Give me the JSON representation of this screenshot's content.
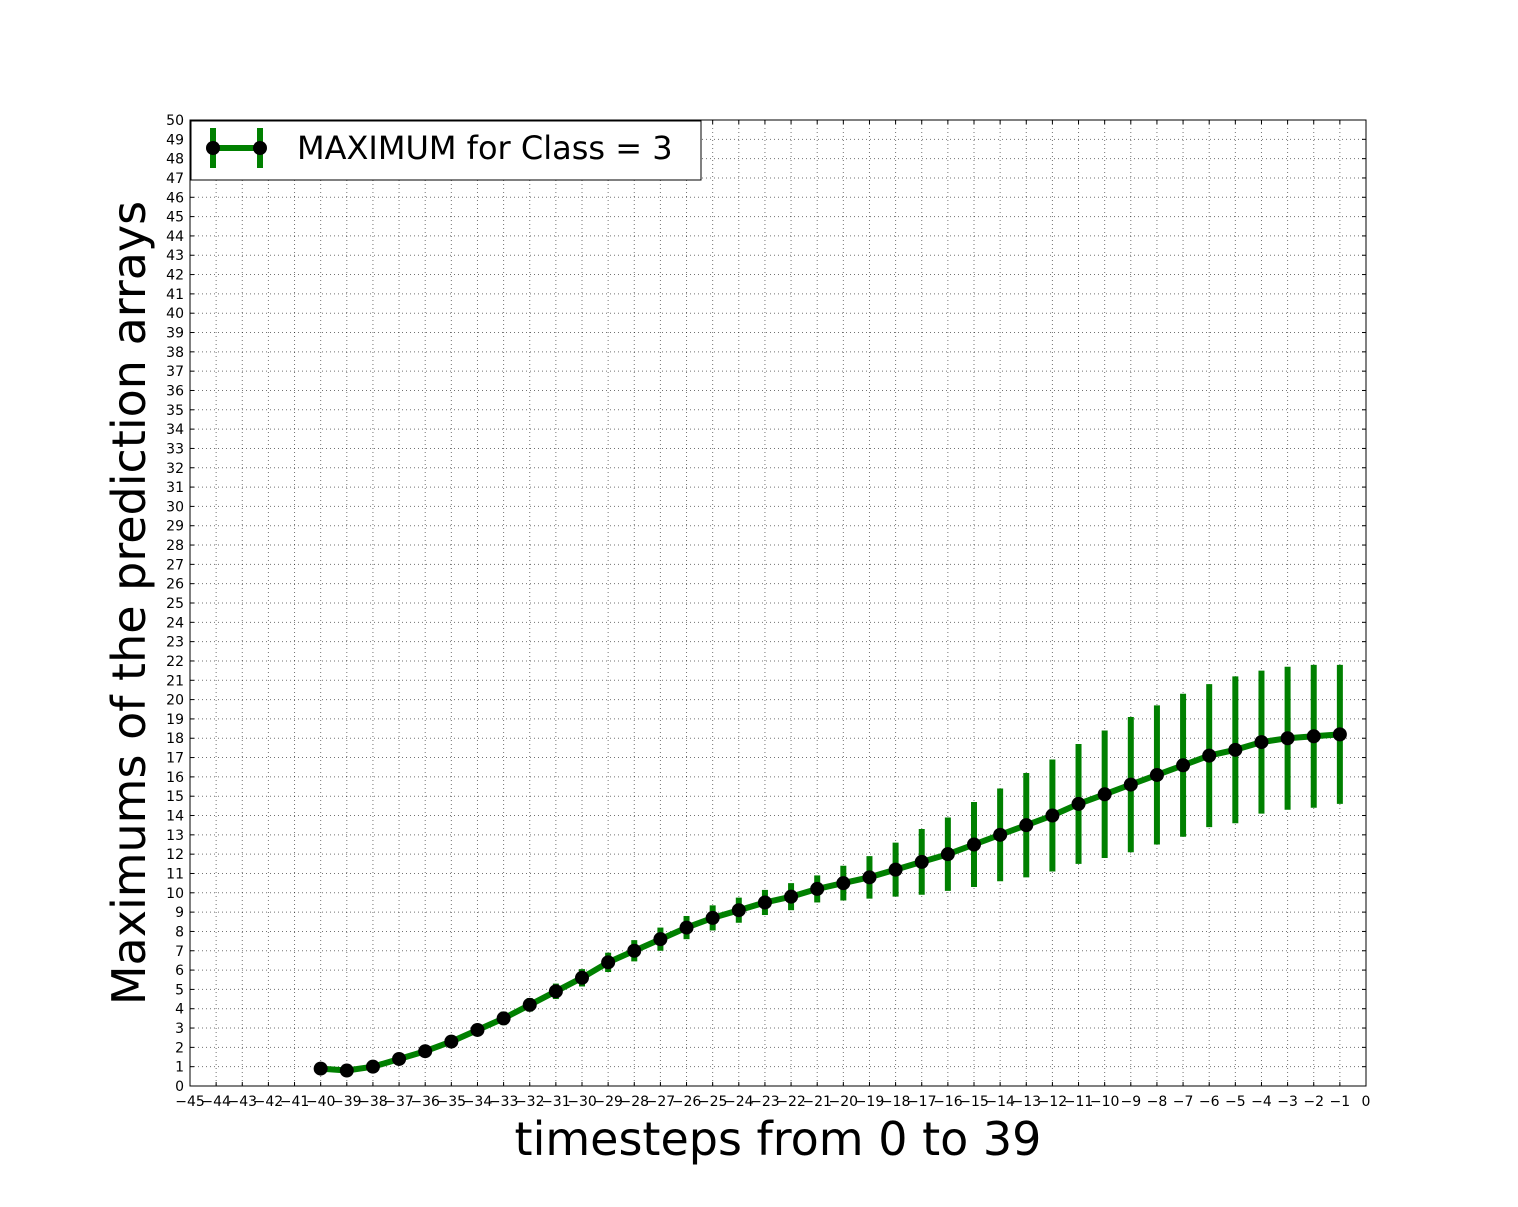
{
  "chart_data": {
    "type": "line",
    "xlabel": "timesteps from 0 to 39",
    "ylabel": "Maximums of the prediction arrays",
    "xlim": [
      -45,
      0
    ],
    "ylim": [
      0,
      50
    ],
    "x_ticks": [
      -45,
      -44,
      -43,
      -42,
      -41,
      -40,
      -39,
      -38,
      -37,
      -36,
      -35,
      -34,
      -33,
      -32,
      -31,
      -30,
      -29,
      -28,
      -27,
      -26,
      -25,
      -24,
      -23,
      -22,
      -21,
      -20,
      -19,
      -18,
      -17,
      -16,
      -15,
      -14,
      -13,
      -12,
      -11,
      -10,
      -9,
      -8,
      -7,
      -6,
      -5,
      -4,
      -3,
      -2,
      -1,
      0
    ],
    "x_tick_labels": [
      "−45",
      "−44",
      "−43",
      "−42",
      "−41",
      "−40",
      "−39",
      "−38",
      "−37",
      "−36",
      "−35",
      "−34",
      "−33",
      "−32",
      "−31",
      "−30",
      "−29",
      "−28",
      "−27",
      "−26",
      "−25",
      "−24",
      "−23",
      "−22",
      "−21",
      "−20",
      "−19",
      "−18",
      "−17",
      "−16",
      "−15",
      "−14",
      "−13",
      "−12",
      "−11",
      "−10",
      "−9",
      "−8",
      "−7",
      "−6",
      "−5",
      "−4",
      "−3",
      "−2",
      "−1",
      "0"
    ],
    "y_ticks": [
      0,
      1,
      2,
      3,
      4,
      5,
      6,
      7,
      8,
      9,
      10,
      11,
      12,
      13,
      14,
      15,
      16,
      17,
      18,
      19,
      20,
      21,
      22,
      23,
      24,
      25,
      26,
      27,
      28,
      29,
      30,
      31,
      32,
      33,
      34,
      35,
      36,
      37,
      38,
      39,
      40,
      41,
      42,
      43,
      44,
      45,
      46,
      47,
      48,
      49,
      50
    ],
    "grid": true,
    "legend_position": "top-left",
    "series": [
      {
        "name": "MAXIMUM for Class = 3",
        "color": "#008000",
        "marker_color": "#000000",
        "x": [
          -40,
          -39,
          -38,
          -37,
          -36,
          -35,
          -34,
          -33,
          -32,
          -31,
          -30,
          -29,
          -28,
          -27,
          -26,
          -25,
          -24,
          -23,
          -22,
          -21,
          -20,
          -19,
          -18,
          -17,
          -16,
          -15,
          -14,
          -13,
          -12,
          -11,
          -10,
          -9,
          -8,
          -7,
          -6,
          -5,
          -4,
          -3,
          -2,
          -1
        ],
        "y": [
          0.9,
          0.8,
          1.0,
          1.4,
          1.8,
          2.3,
          2.9,
          3.5,
          4.2,
          4.9,
          5.6,
          6.4,
          7.0,
          7.6,
          8.2,
          8.7,
          9.1,
          9.5,
          9.8,
          10.2,
          10.5,
          10.8,
          11.2,
          11.6,
          12.0,
          12.5,
          13.0,
          13.5,
          14.0,
          14.6,
          15.1,
          15.6,
          16.1,
          16.6,
          17.1,
          17.4,
          17.8,
          18.0,
          18.1,
          18.2
        ],
        "error": [
          0.1,
          0.1,
          0.1,
          0.15,
          0.2,
          0.25,
          0.3,
          0.35,
          0.35,
          0.4,
          0.45,
          0.5,
          0.55,
          0.6,
          0.6,
          0.65,
          0.65,
          0.65,
          0.7,
          0.7,
          0.9,
          1.1,
          1.4,
          1.7,
          1.9,
          2.2,
          2.4,
          2.7,
          2.9,
          3.1,
          3.3,
          3.5,
          3.6,
          3.7,
          3.7,
          3.8,
          3.7,
          3.7,
          3.7,
          3.6
        ]
      }
    ]
  }
}
